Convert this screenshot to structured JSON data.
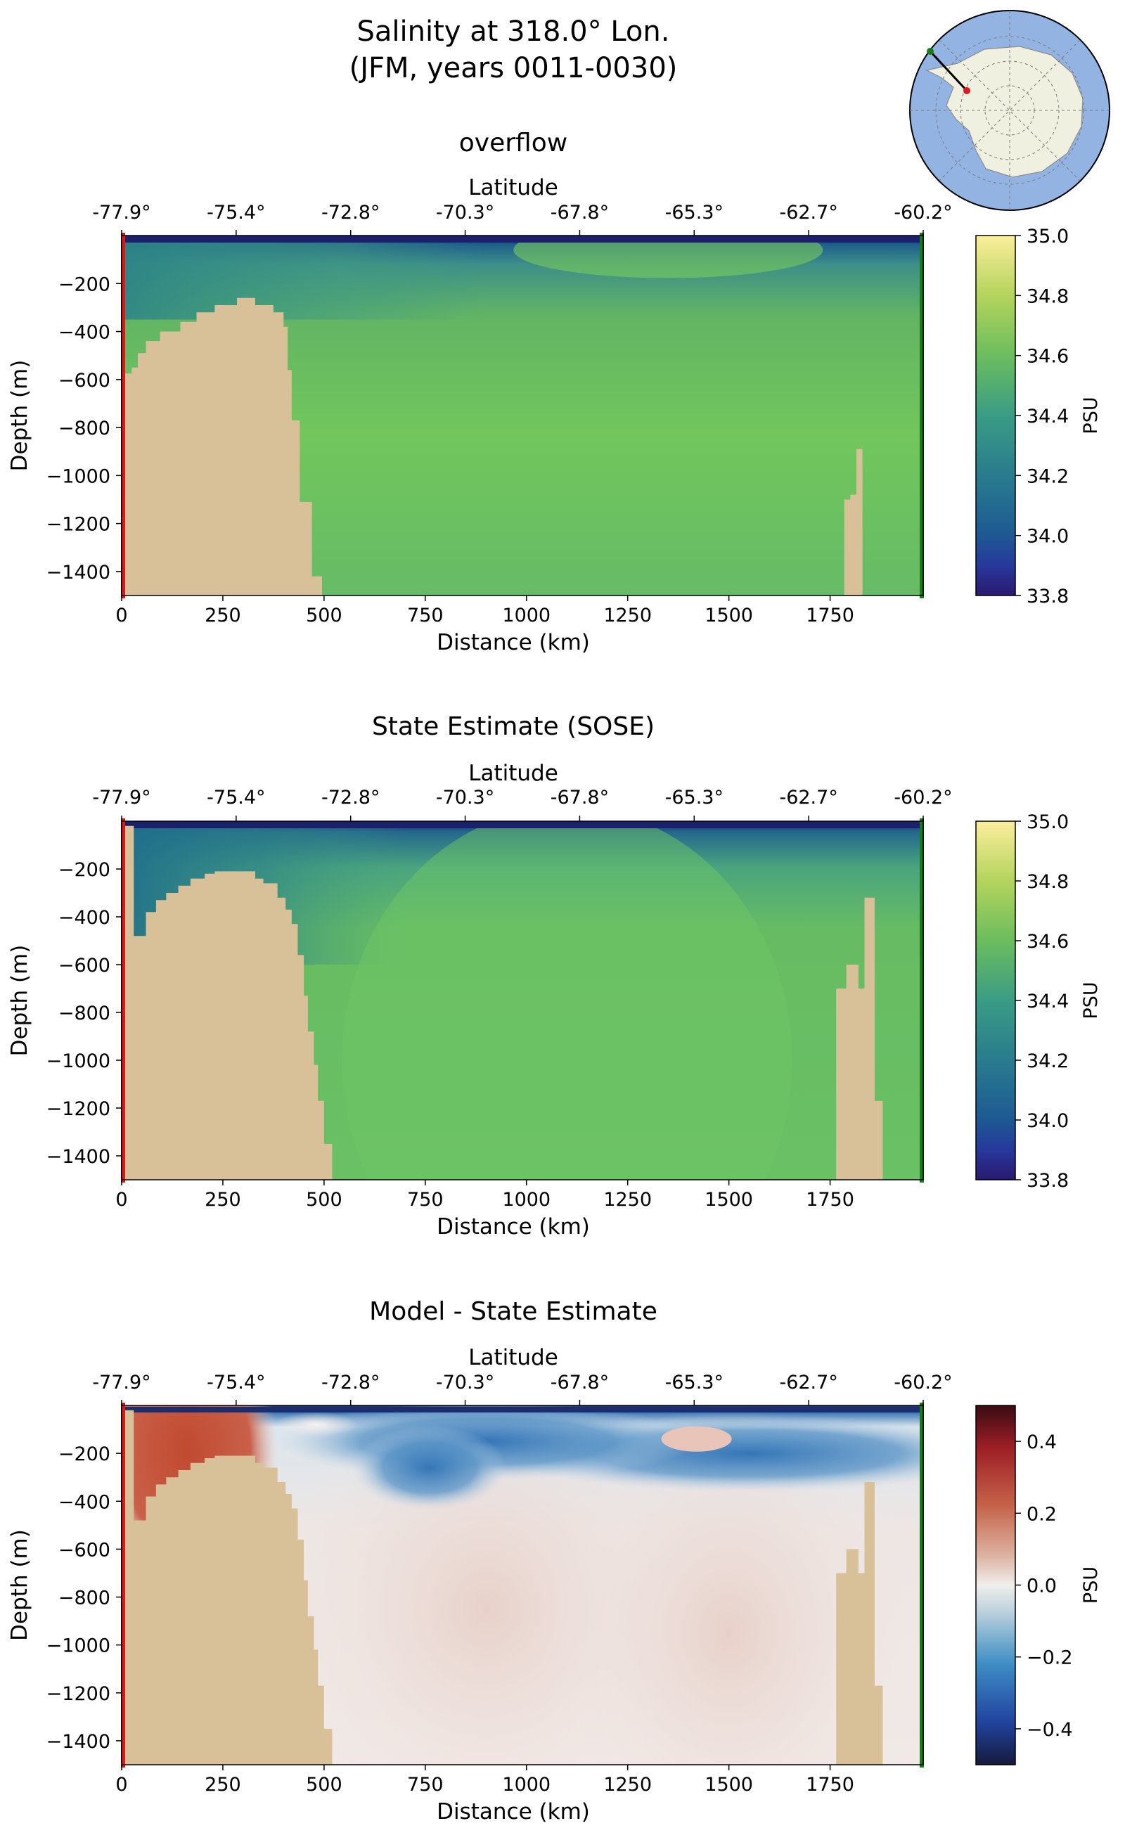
{
  "figure": {
    "title_line1": "Salinity at 318.0° Lon.",
    "title_line2": "(JFM, years 0011-0030)"
  },
  "inset_map": {
    "description": "Polar stereographic map of Antarctica with transect line",
    "colors": {
      "ocean": "#93b3e2",
      "land": "#eff0df",
      "line": "#000000",
      "start": "#e31a1c",
      "end": "#1a7a1a"
    }
  },
  "chart_data": [
    {
      "type": "heatmap",
      "title": "overflow",
      "xlabel": "Distance (km)",
      "ylabel": "Depth (m)",
      "top_xlabel": "Latitude",
      "xlim": [
        0,
        1980
      ],
      "ylim": [
        -1500,
        0
      ],
      "x_ticks": [
        0,
        250,
        500,
        750,
        1000,
        1250,
        1500,
        1750
      ],
      "y_ticks": [
        -200,
        -400,
        -600,
        -800,
        -1000,
        -1200,
        -1400
      ],
      "top_ticks": [
        "-77.9°",
        "-75.4°",
        "-72.8°",
        "-70.3°",
        "-67.8°",
        "-65.3°",
        "-62.7°",
        "-60.2°"
      ],
      "colorbar": {
        "label": "PSU",
        "min": 33.8,
        "max": 35.0,
        "ticks": [
          "35.0",
          "34.8",
          "34.6",
          "34.4",
          "34.2",
          "34.0",
          "33.8"
        ],
        "colormap": "haline"
      },
      "field_summary": {
        "surface": 33.9,
        "shelf": 34.35,
        "interior": 34.62,
        "deep": 34.58
      }
    },
    {
      "type": "heatmap",
      "title": "State Estimate (SOSE)",
      "xlabel": "Distance (km)",
      "ylabel": "Depth (m)",
      "top_xlabel": "Latitude",
      "xlim": [
        0,
        1980
      ],
      "ylim": [
        -1500,
        0
      ],
      "x_ticks": [
        0,
        250,
        500,
        750,
        1000,
        1250,
        1500,
        1750
      ],
      "y_ticks": [
        -200,
        -400,
        -600,
        -800,
        -1000,
        -1200,
        -1400
      ],
      "top_ticks": [
        "-77.9°",
        "-75.4°",
        "-72.8°",
        "-70.3°",
        "-67.8°",
        "-65.3°",
        "-62.7°",
        "-60.2°"
      ],
      "colorbar": {
        "label": "PSU",
        "min": 33.8,
        "max": 35.0,
        "ticks": [
          "35.0",
          "34.8",
          "34.6",
          "34.4",
          "34.2",
          "34.0",
          "33.8"
        ],
        "colormap": "haline"
      },
      "field_summary": {
        "surface": 33.9,
        "shelf": 34.3,
        "interior": 34.62,
        "deep": 34.6
      }
    },
    {
      "type": "heatmap",
      "title": "Model - State Estimate",
      "xlabel": "Distance (km)",
      "ylabel": "Depth (m)",
      "top_xlabel": "Latitude",
      "xlim": [
        0,
        1980
      ],
      "ylim": [
        -1500,
        0
      ],
      "x_ticks": [
        0,
        250,
        500,
        750,
        1000,
        1250,
        1500,
        1750
      ],
      "y_ticks": [
        -200,
        -400,
        -600,
        -800,
        -1000,
        -1200,
        -1400
      ],
      "top_ticks": [
        "-77.9°",
        "-75.4°",
        "-72.8°",
        "-70.3°",
        "-67.8°",
        "-65.3°",
        "-62.7°",
        "-60.2°"
      ],
      "colorbar": {
        "label": "PSU",
        "min": -0.5,
        "max": 0.5,
        "ticks": [
          "0.4",
          "0.2",
          "0.0",
          "−0.2",
          "−0.4"
        ],
        "tick_values": [
          0.4,
          0.2,
          0.0,
          -0.2,
          -0.4
        ],
        "colormap": "balance"
      },
      "field_summary": {
        "shelf_anomaly": 0.3,
        "subsurface_anomaly": -0.25,
        "interior_anomaly": 0.03
      }
    }
  ]
}
